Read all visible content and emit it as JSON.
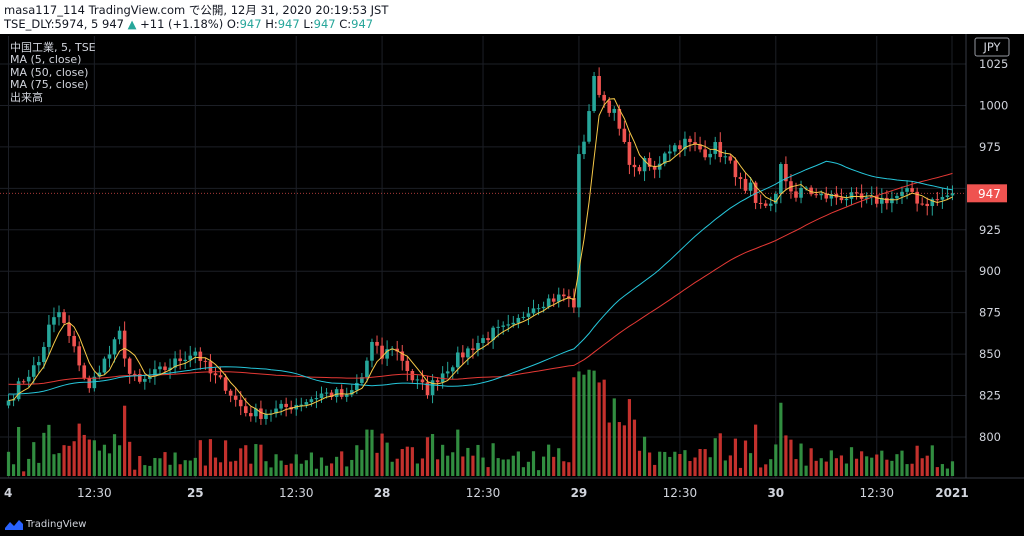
{
  "header": {
    "line1": "masa117_114 TradingView.com で公開, 12月 31, 2020 20:19:53 JST",
    "symbol_line": "TSE_DLY:5974, 5 947",
    "change_arrow": "▲",
    "change": "+11 (+1.18%)",
    "ohlc": [
      {
        "label": "O:",
        "value": "947"
      },
      {
        "label": "H:",
        "value": "947"
      },
      {
        "label": "L:",
        "value": "947"
      },
      {
        "label": "C:",
        "value": "947"
      }
    ]
  },
  "legend": {
    "symbol": "中国工業, 5, TSE",
    "ma5": "MA (5, close)",
    "ma50": "MA (50, close)",
    "ma75": "MA (75, close)",
    "volume": "出来高"
  },
  "currency": "JPY",
  "last_price_label": "947",
  "brand": "TradingView",
  "colors": {
    "up": "#26a69a",
    "down": "#ef5350",
    "ma5": "#f7c948",
    "ma50": "#26c6da",
    "ma75": "#e53935",
    "vol_up": "#3aa64b",
    "vol_down": "#e53935"
  },
  "chart_data": {
    "type": "candlestick",
    "interval": "5 minutes",
    "y_ticks": [
      800,
      825,
      850,
      875,
      900,
      925,
      950,
      975,
      1000,
      1025
    ],
    "y_tick_labels": [
      "800",
      "825",
      "850",
      "875",
      "900",
      "925",
      "975",
      "1000",
      "1025"
    ],
    "ylim": [
      775,
      1032
    ],
    "x_tick_labels": [
      "4",
      "12:30",
      "25",
      "12:30",
      "28",
      "12:30",
      "29",
      "12:30",
      "30",
      "12:30",
      "2021"
    ],
    "last_price": 947,
    "close_anchors": [
      [
        0,
        822
      ],
      [
        3,
        835
      ],
      [
        6,
        845
      ],
      [
        8,
        866
      ],
      [
        10,
        875
      ],
      [
        12,
        860
      ],
      [
        14,
        845
      ],
      [
        16,
        828
      ],
      [
        18,
        842
      ],
      [
        20,
        850
      ],
      [
        22,
        862
      ],
      [
        24,
        838
      ],
      [
        26,
        832
      ],
      [
        29,
        838
      ],
      [
        32,
        843
      ],
      [
        35,
        849
      ],
      [
        37,
        852
      ],
      [
        40,
        838
      ],
      [
        43,
        831
      ],
      [
        45,
        822
      ],
      [
        47,
        815
      ],
      [
        50,
        814
      ],
      [
        53,
        816
      ],
      [
        56,
        819
      ],
      [
        59,
        822
      ],
      [
        62,
        826
      ],
      [
        65,
        826
      ],
      [
        67,
        823
      ],
      [
        70,
        836
      ],
      [
        72,
        856
      ],
      [
        74,
        848
      ],
      [
        76,
        855
      ],
      [
        78,
        847
      ],
      [
        80,
        835
      ],
      [
        83,
        828
      ],
      [
        85,
        836
      ],
      [
        88,
        845
      ],
      [
        92,
        855
      ],
      [
        96,
        863
      ],
      [
        100,
        866
      ],
      [
        103,
        878
      ],
      [
        106,
        882
      ],
      [
        110,
        885
      ],
      [
        112,
        880
      ],
      [
        113,
        968
      ],
      [
        114,
        980
      ],
      [
        116,
        1015
      ],
      [
        118,
        1003
      ],
      [
        120,
        995
      ],
      [
        122,
        975
      ],
      [
        124,
        960
      ],
      [
        126,
        965
      ],
      [
        128,
        960
      ],
      [
        130,
        973
      ],
      [
        134,
        978
      ],
      [
        138,
        972
      ],
      [
        140,
        975
      ],
      [
        142,
        968
      ],
      [
        144,
        960
      ],
      [
        146,
        946
      ],
      [
        147,
        950
      ],
      [
        148,
        938
      ],
      [
        150,
        940
      ],
      [
        152,
        945
      ],
      [
        153,
        962
      ],
      [
        154,
        955
      ],
      [
        156,
        945
      ],
      [
        158,
        950
      ],
      [
        160,
        945
      ],
      [
        163,
        945
      ],
      [
        166,
        945
      ],
      [
        170,
        942
      ],
      [
        175,
        944
      ],
      [
        179,
        948
      ],
      [
        180,
        943
      ],
      [
        181,
        941
      ],
      [
        184,
        943
      ],
      [
        187,
        947
      ]
    ],
    "ma_periods": [
      5,
      50,
      75
    ],
    "ma75_initial": 832,
    "ma50_initial": 826
  }
}
